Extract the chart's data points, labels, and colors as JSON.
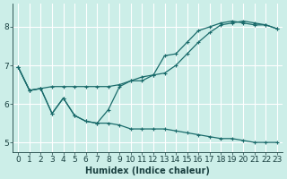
{
  "xlabel": "Humidex (Indice chaleur)",
  "bg_color": "#cceee8",
  "grid_color": "#ffffff",
  "line_color": "#1a6b6b",
  "line1_x": [
    0,
    1,
    2,
    3,
    4,
    5,
    6,
    7,
    8,
    9,
    10,
    11,
    12,
    13,
    14,
    15,
    16,
    17,
    18,
    19,
    20,
    21,
    22,
    23
  ],
  "line1_y": [
    6.95,
    6.35,
    6.4,
    6.45,
    6.45,
    6.45,
    6.45,
    6.45,
    6.45,
    6.5,
    6.6,
    6.7,
    6.75,
    6.8,
    7.0,
    7.3,
    7.6,
    7.85,
    8.05,
    8.1,
    8.15,
    8.1,
    8.05,
    7.95
  ],
  "line2_x": [
    0,
    1,
    2,
    3,
    4,
    5,
    6,
    7,
    8,
    9,
    10,
    11,
    12,
    13,
    14,
    15,
    16,
    17,
    18,
    19,
    20,
    21,
    22,
    23
  ],
  "line2_y": [
    6.95,
    6.35,
    6.4,
    5.75,
    6.15,
    5.7,
    5.55,
    5.5,
    5.85,
    6.45,
    6.6,
    6.6,
    6.75,
    7.25,
    7.3,
    7.6,
    7.9,
    8.0,
    8.1,
    8.15,
    8.1,
    8.05,
    8.05,
    7.95
  ],
  "line3_x": [
    0,
    1,
    2,
    3,
    4,
    5,
    6,
    7,
    8,
    9,
    10,
    11,
    12,
    13,
    14,
    15,
    16,
    17,
    18,
    19,
    20,
    21,
    22,
    23
  ],
  "line3_y": [
    6.95,
    6.35,
    6.4,
    5.75,
    6.15,
    5.7,
    5.55,
    5.5,
    5.5,
    5.45,
    5.35,
    5.35,
    5.35,
    5.35,
    5.3,
    5.25,
    5.2,
    5.15,
    5.1,
    5.1,
    5.05,
    5.0,
    5.0,
    5.0
  ],
  "xlim": [
    -0.5,
    23.5
  ],
  "ylim": [
    4.75,
    8.6
  ],
  "yticks": [
    5,
    6,
    7,
    8
  ],
  "xticks": [
    0,
    1,
    2,
    3,
    4,
    5,
    6,
    7,
    8,
    9,
    10,
    11,
    12,
    13,
    14,
    15,
    16,
    17,
    18,
    19,
    20,
    21,
    22,
    23
  ],
  "tick_fontsize": 6.5,
  "xlabel_fontsize": 7.0,
  "lw": 0.9,
  "marker_size": 3.0
}
